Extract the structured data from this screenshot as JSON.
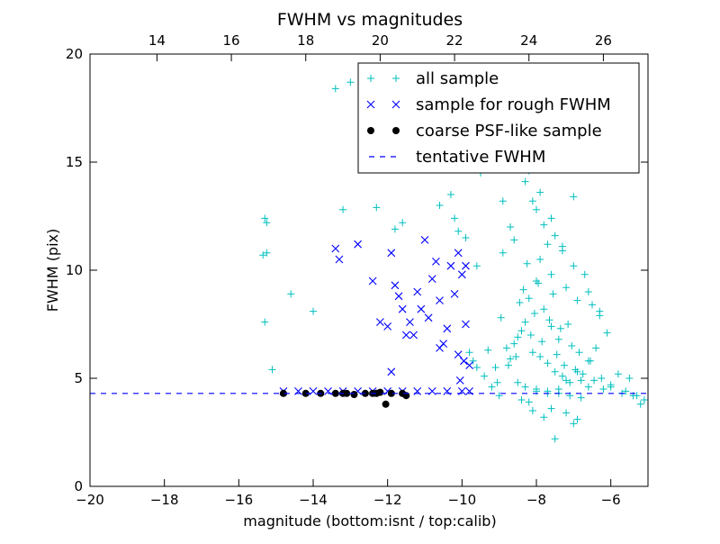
{
  "chart_data": {
    "type": "scatter",
    "title": "FWHM vs magnitudes",
    "xlabel": "magnitude (bottom:isnt / top:calib)",
    "ylabel": "FWHM (pix)",
    "xlim": [
      -20,
      -5
    ],
    "ylim": [
      0,
      20
    ],
    "x_ticks": [
      -20,
      -18,
      -16,
      -14,
      -12,
      -10,
      -8,
      -6
    ],
    "x_tick_labels": [
      "−20",
      "−18",
      "−16",
      "−14",
      "−12",
      "−10",
      "−8",
      "−6"
    ],
    "y_ticks": [
      0,
      5,
      10,
      15,
      20
    ],
    "y_tick_labels": [
      "0",
      "5",
      "10",
      "15",
      "20"
    ],
    "top_axis": {
      "offset": 32.2,
      "ticks": [
        14,
        16,
        18,
        20,
        22,
        24,
        26
      ],
      "tick_labels": [
        "14",
        "16",
        "18",
        "20",
        "22",
        "24",
        "26"
      ]
    },
    "grid": false,
    "legend_position": "top-right",
    "series": [
      {
        "name": "all sample",
        "marker": "+",
        "color": "#00bfbf",
        "x": [
          -15.3,
          -15.25,
          -15.35,
          -15.3,
          -15.1,
          -15.25,
          -14.0,
          -14.6,
          -13.4,
          -13.0,
          -13.2,
          -12.5,
          -12.3,
          -11.8,
          -11.6,
          -10.6,
          -10.3,
          -10.2,
          -10.1,
          -9.5,
          -9.9,
          -9.6,
          -9.2,
          -9.4,
          -8.9,
          -9.0,
          -8.6,
          -8.4,
          -8.2,
          -8.1,
          -8.0,
          -7.9,
          -7.8,
          -7.7,
          -7.6,
          -7.5,
          -7.3,
          -7.2,
          -7.0,
          -6.9,
          -6.7,
          -6.5,
          -6.3,
          -6.1,
          -5.8,
          -5.5,
          -5.2,
          -8.0,
          -8.2,
          -7.8,
          -8.3,
          -8.5,
          -7.6,
          -7.4,
          -8.1,
          -8.7,
          -9.1,
          -8.8,
          -7.9,
          -7.7,
          -7.5,
          -7.3,
          -7.1,
          -6.8,
          -6.6,
          -6.2,
          -6.0,
          -5.6,
          -5.3,
          -8.4,
          -8.6,
          -9.3,
          -9.7,
          -8.95,
          -8.45,
          -8.15,
          -7.85,
          -7.45,
          -7.25,
          -6.95,
          -8.35,
          -8.05,
          -7.65,
          -7.35,
          -7.05,
          -6.75,
          -6.45,
          -8.25,
          -7.95,
          -7.55,
          -7.15,
          -6.85,
          -6.55,
          -6.25,
          -9.05,
          -8.75,
          -8.55,
          -8.3,
          -8.0,
          -7.7,
          -7.4,
          -7.1,
          -6.8,
          -7.6,
          -7.8,
          -8.1,
          -7.2,
          -6.9,
          -7.0,
          -7.5,
          -8.2,
          -8.4,
          -9.0,
          -9.2,
          -9.4,
          -9.6,
          -9.8,
          -8.6,
          -8.9,
          -8.7,
          -8.3,
          -7.9,
          -7.6,
          -7.3,
          -7.0,
          -6.6,
          -6.3,
          -8.5,
          -8.0,
          -7.7,
          -7.4,
          -7.2,
          -6.9,
          -6.6,
          -6.4,
          -6.0,
          -5.7,
          -5.4,
          -5.1
        ],
        "y": [
          12.4,
          12.2,
          10.7,
          7.6,
          5.4,
          10.8,
          8.1,
          8.9,
          18.4,
          18.7,
          12.8,
          16.3,
          12.9,
          11.9,
          12.2,
          13.0,
          13.5,
          12.4,
          11.8,
          14.5,
          11.5,
          10.2,
          18.6,
          16.9,
          13.2,
          15.0,
          19.3,
          15.8,
          14.6,
          13.2,
          12.8,
          10.5,
          12.1,
          11.2,
          9.8,
          11.6,
          10.9,
          9.2,
          13.4,
          8.6,
          9.8,
          8.4,
          7.9,
          7.1,
          5.2,
          5.0,
          3.8,
          9.5,
          8.7,
          8.2,
          7.6,
          6.9,
          7.4,
          6.8,
          6.2,
          5.9,
          5.5,
          6.4,
          6.0,
          5.7,
          5.3,
          5.1,
          4.8,
          4.9,
          4.6,
          4.5,
          4.7,
          4.4,
          4.2,
          7.2,
          6.6,
          6.3,
          5.8,
          7.8,
          8.5,
          7.0,
          6.7,
          6.1,
          5.6,
          5.4,
          9.1,
          8.0,
          7.7,
          7.3,
          6.5,
          5.2,
          4.9,
          10.3,
          9.4,
          8.9,
          7.5,
          6.2,
          5.8,
          5.0,
          4.8,
          5.6,
          6.0,
          4.6,
          4.5,
          4.4,
          4.3,
          4.2,
          4.1,
          3.6,
          3.2,
          3.5,
          3.4,
          3.1,
          2.9,
          2.2,
          3.9,
          4.0,
          4.2,
          4.6,
          5.1,
          5.5,
          6.2,
          11.4,
          10.8,
          12.0,
          14.1,
          13.6,
          12.4,
          11.1,
          10.2,
          9.0,
          8.1,
          4.8,
          4.4,
          4.3,
          4.5,
          4.9,
          5.3,
          5.8,
          6.4,
          4.6,
          4.3,
          4.2,
          4.0
        ]
      },
      {
        "name": "sample for rough FWHM",
        "marker": "x",
        "color": "#0000ff",
        "x": [
          -13.4,
          -13.3,
          -12.8,
          -12.4,
          -12.0,
          -11.9,
          -11.7,
          -11.6,
          -11.4,
          -11.2,
          -11.0,
          -10.8,
          -10.6,
          -10.4,
          -10.3,
          -10.1,
          -10.0,
          -9.9,
          -9.8,
          -11.9,
          -11.5,
          -11.1,
          -10.7,
          -10.5,
          -10.2,
          -10.05,
          -9.95,
          -11.3,
          -10.9,
          -12.2,
          -11.8,
          -10.6,
          -10.1,
          -9.9,
          -14.8,
          -14.4,
          -14.0,
          -13.6,
          -13.2,
          -12.8,
          -12.4,
          -12.0,
          -11.6,
          -11.2,
          -10.8,
          -10.4,
          -10.0,
          -9.8
        ],
        "y": [
          11.0,
          10.5,
          11.2,
          9.5,
          7.4,
          10.8,
          8.8,
          8.2,
          7.6,
          9.0,
          11.4,
          9.6,
          8.6,
          7.3,
          10.2,
          6.1,
          9.8,
          7.5,
          5.6,
          5.3,
          7.0,
          8.2,
          10.4,
          6.6,
          8.9,
          4.9,
          5.8,
          7.0,
          7.8,
          7.6,
          9.3,
          6.4,
          10.8,
          10.2,
          4.4,
          4.4,
          4.4,
          4.4,
          4.4,
          4.4,
          4.4,
          4.4,
          4.4,
          4.4,
          4.4,
          4.4,
          4.4,
          4.4
        ]
      },
      {
        "name": "coarse PSF-like sample",
        "marker": "o",
        "color": "#000000",
        "x": [
          -14.8,
          -14.2,
          -13.8,
          -13.4,
          -13.2,
          -12.9,
          -12.6,
          -12.4,
          -12.2,
          -12.05,
          -11.9,
          -11.6,
          -11.5,
          -13.1,
          -12.3
        ],
        "y": [
          4.3,
          4.3,
          4.3,
          4.3,
          4.3,
          4.25,
          4.3,
          4.3,
          4.35,
          3.8,
          4.3,
          4.3,
          4.2,
          4.3,
          4.3
        ]
      },
      {
        "name": "tentative FWHM",
        "marker": "--",
        "color": "#0000ff",
        "hline": 4.3
      }
    ]
  }
}
